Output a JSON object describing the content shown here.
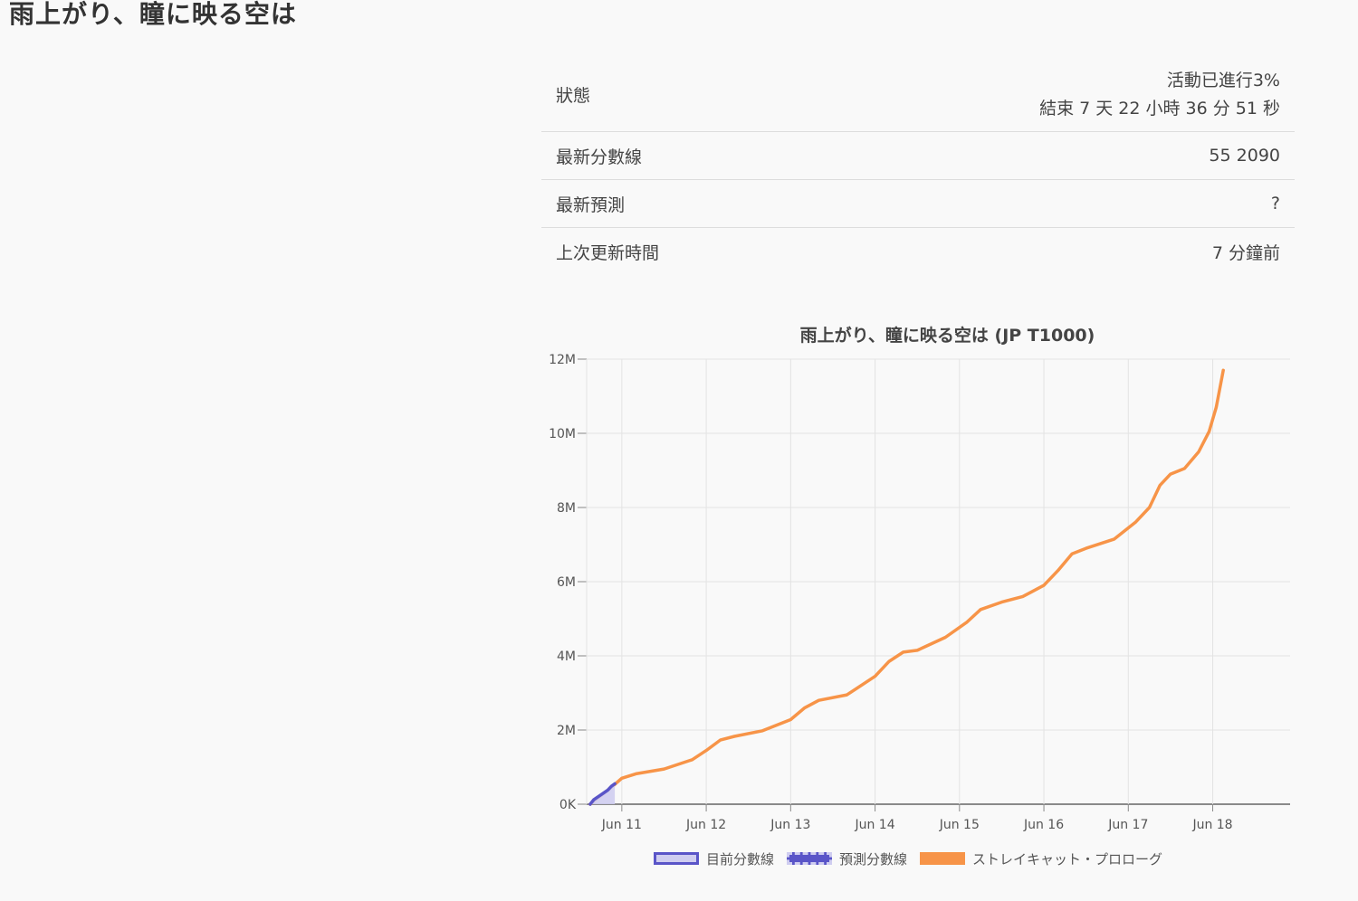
{
  "page": {
    "title": "雨上がり、瞳に映る空は"
  },
  "info": {
    "rows": [
      {
        "label": "狀態",
        "value_line1": "活動已進行3%",
        "value_line2": "結束 7 天 22 小時 36 分 51 秒"
      },
      {
        "label": "最新分數線",
        "value": "55 2090"
      },
      {
        "label": "最新預測",
        "value": "?"
      },
      {
        "label": "上次更新時間",
        "value": "7 分鐘前"
      }
    ]
  },
  "colors": {
    "current": "#5a55c8",
    "current_fill": "#cfcdf0",
    "predicted": "#5a55c8",
    "reference": "#f79448"
  },
  "chart_data": {
    "type": "line",
    "title": "雨上がり、瞳に映る空は (JP T1000)",
    "xlabel": "",
    "ylabel": "",
    "ylim": [
      0,
      12000000
    ],
    "yticks": [
      0,
      2000000,
      4000000,
      6000000,
      8000000,
      10000000,
      12000000
    ],
    "ytick_labels": [
      "0K",
      "2M",
      "4M",
      "6M",
      "8M",
      "10M",
      "12M"
    ],
    "xlim": [
      "2023-06-10T14:00",
      "2023-06-18T22:00"
    ],
    "xticks": [
      "2023-06-11",
      "2023-06-12",
      "2023-06-13",
      "2023-06-14",
      "2023-06-15",
      "2023-06-16",
      "2023-06-17",
      "2023-06-18"
    ],
    "xtick_labels": [
      "Jun 11",
      "Jun 12",
      "Jun 13",
      "Jun 14",
      "Jun 15",
      "Jun 16",
      "Jun 17",
      "Jun 18"
    ],
    "grid": true,
    "legend_position": "bottom",
    "series": [
      {
        "name": "目前分數線",
        "style": "solid-area",
        "points": [
          [
            "2023-06-10T15:00",
            0
          ],
          [
            "2023-06-10T16:00",
            120000
          ],
          [
            "2023-06-10T18:00",
            250000
          ],
          [
            "2023-06-10T20:00",
            380000
          ],
          [
            "2023-06-10T21:00",
            480000
          ],
          [
            "2023-06-10T22:00",
            552090
          ]
        ]
      },
      {
        "name": "預測分數線",
        "style": "dashed",
        "points": []
      },
      {
        "name": "ストレイキャット・プロローグ",
        "style": "solid",
        "points": [
          [
            "2023-06-10T15:00",
            0
          ],
          [
            "2023-06-10T21:00",
            450000
          ],
          [
            "2023-06-11T00:00",
            700000
          ],
          [
            "2023-06-11T04:00",
            820000
          ],
          [
            "2023-06-11T12:00",
            950000
          ],
          [
            "2023-06-11T20:00",
            1200000
          ],
          [
            "2023-06-12T00:00",
            1450000
          ],
          [
            "2023-06-12T04:00",
            1730000
          ],
          [
            "2023-06-12T08:00",
            1830000
          ],
          [
            "2023-06-12T16:00",
            1980000
          ],
          [
            "2023-06-13T00:00",
            2280000
          ],
          [
            "2023-06-13T04:00",
            2600000
          ],
          [
            "2023-06-13T08:00",
            2800000
          ],
          [
            "2023-06-13T16:00",
            2950000
          ],
          [
            "2023-06-14T00:00",
            3450000
          ],
          [
            "2023-06-14T04:00",
            3850000
          ],
          [
            "2023-06-14T08:00",
            4100000
          ],
          [
            "2023-06-14T12:00",
            4150000
          ],
          [
            "2023-06-14T20:00",
            4500000
          ],
          [
            "2023-06-15T02:00",
            4900000
          ],
          [
            "2023-06-15T06:00",
            5250000
          ],
          [
            "2023-06-15T12:00",
            5450000
          ],
          [
            "2023-06-15T18:00",
            5600000
          ],
          [
            "2023-06-16T00:00",
            5900000
          ],
          [
            "2023-06-16T04:00",
            6300000
          ],
          [
            "2023-06-16T08:00",
            6750000
          ],
          [
            "2023-06-16T12:00",
            6900000
          ],
          [
            "2023-06-16T20:00",
            7150000
          ],
          [
            "2023-06-17T02:00",
            7600000
          ],
          [
            "2023-06-17T06:00",
            8000000
          ],
          [
            "2023-06-17T09:00",
            8600000
          ],
          [
            "2023-06-17T12:00",
            8900000
          ],
          [
            "2023-06-17T16:00",
            9050000
          ],
          [
            "2023-06-17T20:00",
            9500000
          ],
          [
            "2023-06-17T23:00",
            10050000
          ],
          [
            "2023-06-18T01:00",
            10700000
          ],
          [
            "2023-06-18T03:00",
            11700000
          ]
        ]
      }
    ]
  }
}
